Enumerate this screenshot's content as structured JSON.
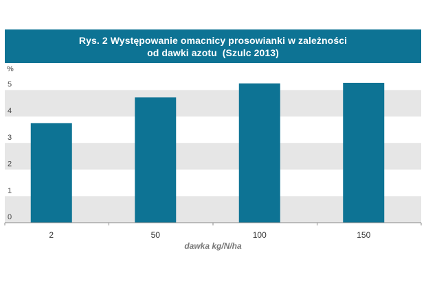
{
  "header": {
    "title_line1": "Rys. 2 Występowanie omacnicy prosowianki w zależności",
    "title_line2": "od dawki azotu  (Szulc 2013)"
  },
  "colors": {
    "header_bg": "#0d7394",
    "bar": "#0d7394",
    "band": "#e6e6e6"
  },
  "chart_data": {
    "type": "bar",
    "title": "Rys. 2 Występowanie omacnicy prosowianki w zależności od dawki azotu  (Szulc 2013)",
    "xlabel": "dawka kg/N/ha",
    "ylabel": "%",
    "categories": [
      "2",
      "50",
      "100",
      "150"
    ],
    "values": [
      3.75,
      4.72,
      5.25,
      5.27
    ],
    "ylim": [
      0,
      5.5
    ],
    "yticks": [
      0,
      1,
      2,
      3,
      4,
      5
    ],
    "grid": "alternating horizontal bands",
    "legend": "none"
  }
}
